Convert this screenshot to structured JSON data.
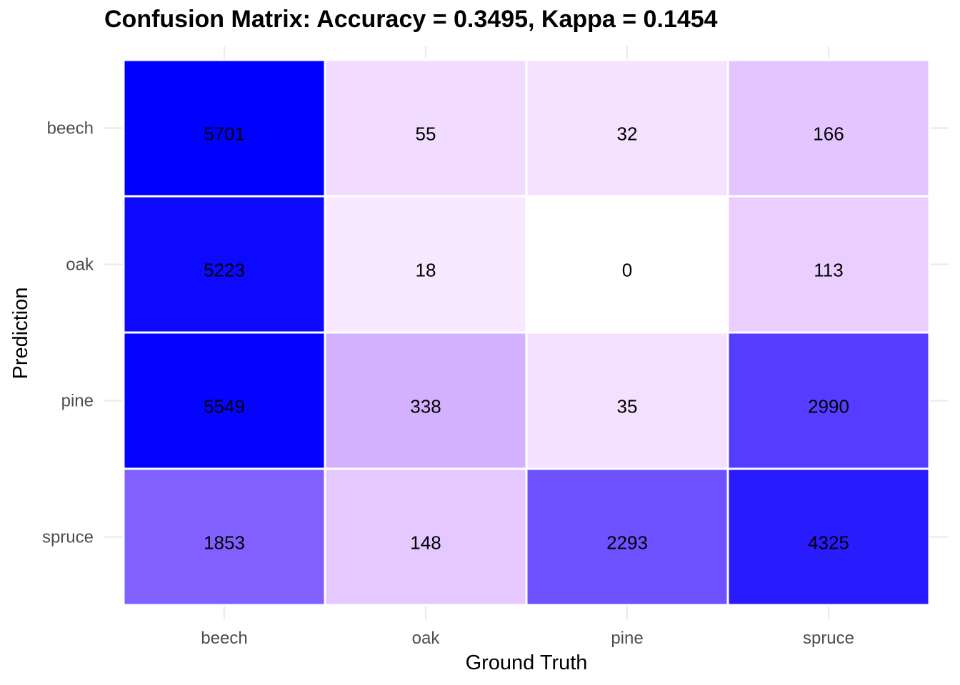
{
  "chart_data": {
    "type": "heatmap",
    "title": "Confusion Matrix: Accuracy = 0.3495, Kappa = 0.1454",
    "xlabel": "Ground Truth",
    "ylabel": "Prediction",
    "x_categories": [
      "beech",
      "oak",
      "pine",
      "spruce"
    ],
    "y_categories": [
      "beech",
      "oak",
      "pine",
      "spruce"
    ],
    "cells": [
      {
        "prediction": "beech",
        "truth": "beech",
        "value": 5701
      },
      {
        "prediction": "beech",
        "truth": "oak",
        "value": 55
      },
      {
        "prediction": "beech",
        "truth": "pine",
        "value": 32
      },
      {
        "prediction": "beech",
        "truth": "spruce",
        "value": 166
      },
      {
        "prediction": "oak",
        "truth": "beech",
        "value": 5223
      },
      {
        "prediction": "oak",
        "truth": "oak",
        "value": 18
      },
      {
        "prediction": "oak",
        "truth": "pine",
        "value": 0
      },
      {
        "prediction": "oak",
        "truth": "spruce",
        "value": 113
      },
      {
        "prediction": "pine",
        "truth": "beech",
        "value": 5549
      },
      {
        "prediction": "pine",
        "truth": "oak",
        "value": 338
      },
      {
        "prediction": "pine",
        "truth": "pine",
        "value": 35
      },
      {
        "prediction": "pine",
        "truth": "spruce",
        "value": 2990
      },
      {
        "prediction": "spruce",
        "truth": "beech",
        "value": 1853
      },
      {
        "prediction": "spruce",
        "truth": "oak",
        "value": 148
      },
      {
        "prediction": "spruce",
        "truth": "pine",
        "value": 2293
      },
      {
        "prediction": "spruce",
        "truth": "spruce",
        "value": 4325
      }
    ],
    "color_low": "#ffffff",
    "color_high": "#0000ff",
    "grid": true,
    "legend": "none"
  }
}
